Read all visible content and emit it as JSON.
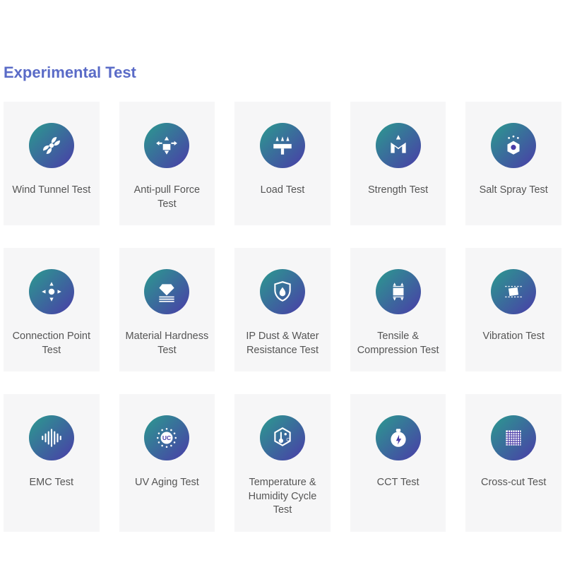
{
  "section": {
    "title": "Experimental Test",
    "title_color": "#5a6bc7",
    "title_fontsize": 22
  },
  "card": {
    "background_color": "#f6f6f7",
    "label_color": "#555555",
    "label_fontsize": 14.5
  },
  "icon_circle": {
    "diameter": 64,
    "gradient_start": "#2b9b8f",
    "gradient_end": "#4a3ca8",
    "gradient_angle_deg": 135,
    "glyph_color": "#ffffff"
  },
  "grid": {
    "columns": 5,
    "rows": 3,
    "col_gap": 28,
    "row_gap": 32
  },
  "tests": [
    {
      "icon": "fan",
      "label": "Wind Tunnel Test"
    },
    {
      "icon": "antipull",
      "label": "Anti-pull Force Test"
    },
    {
      "icon": "load",
      "label": "Load Test"
    },
    {
      "icon": "strength",
      "label": "Strength Test"
    },
    {
      "icon": "saltspray",
      "label": "Salt Spray Test"
    },
    {
      "icon": "connpoint",
      "label": "Connection Point Test"
    },
    {
      "icon": "hardness",
      "label": "Material Hardness Test"
    },
    {
      "icon": "ipshield",
      "label": "IP Dust & Water Resistance Test"
    },
    {
      "icon": "tensile",
      "label": "Tensile & Compression Test"
    },
    {
      "icon": "vibration",
      "label": "Vibration Test"
    },
    {
      "icon": "emc",
      "label": "EMC Test"
    },
    {
      "icon": "uvaging",
      "label": "UV Aging Test"
    },
    {
      "icon": "temphum",
      "label": "Temperature & Humidity Cycle Test"
    },
    {
      "icon": "cct",
      "label": "CCT Test"
    },
    {
      "icon": "crosscut",
      "label": "Cross-cut Test"
    }
  ]
}
